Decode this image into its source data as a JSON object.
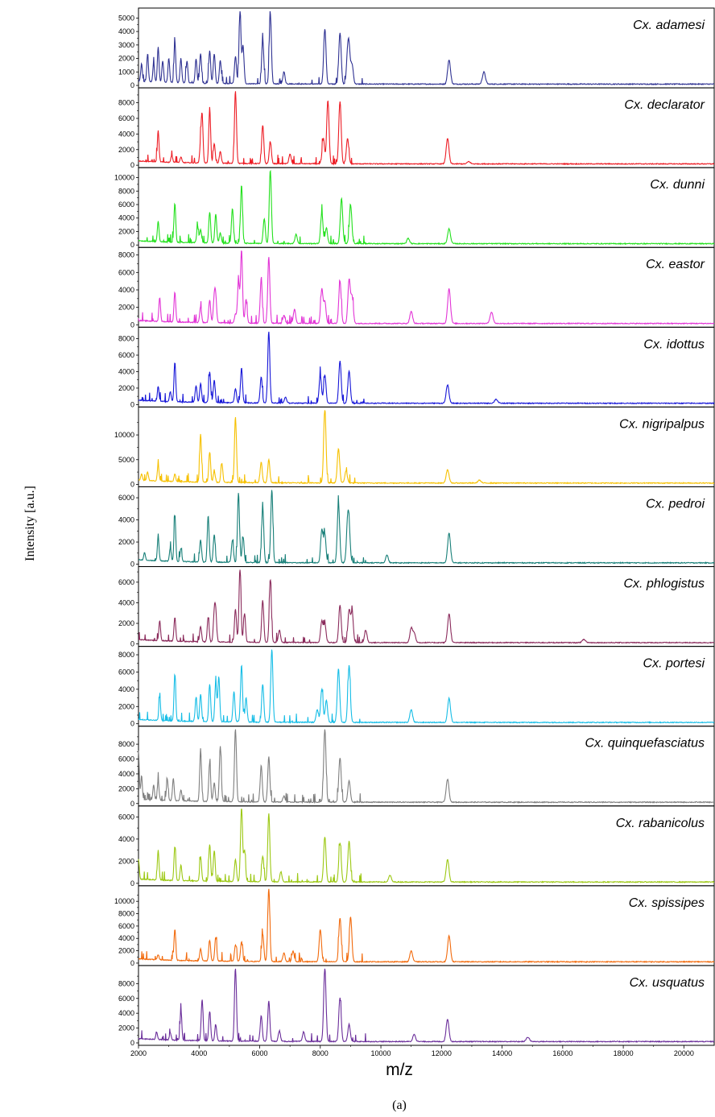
{
  "figure": {
    "ylabel": "Intensity [a.u.]",
    "xlabel": "m/z",
    "caption": "(a)"
  },
  "chart_data": {
    "type": "line",
    "xlabel": "m/z",
    "ylabel": "Intensity [a.u.]",
    "xlim": [
      2000,
      21000
    ],
    "x_ticks": [
      2000,
      4000,
      6000,
      8000,
      10000,
      12000,
      14000,
      16000,
      18000,
      20000
    ],
    "grid": false,
    "panels": [
      {
        "name": "Cx. adamesi",
        "color": "#2e3192",
        "ylim": [
          0,
          5500
        ],
        "y_ticks": [
          0,
          1000,
          2000,
          3000,
          4000,
          5000
        ],
        "peaks": [
          [
            2100,
            1300
          ],
          [
            2300,
            2000
          ],
          [
            2500,
            1400
          ],
          [
            2650,
            2600
          ],
          [
            2800,
            1600
          ],
          [
            3000,
            1800
          ],
          [
            3200,
            3000
          ],
          [
            3400,
            1800
          ],
          [
            3600,
            1600
          ],
          [
            3900,
            1800
          ],
          [
            4050,
            2200
          ],
          [
            4350,
            2400
          ],
          [
            4500,
            2200
          ],
          [
            4700,
            1700
          ],
          [
            5200,
            2000
          ],
          [
            5350,
            5200
          ],
          [
            5450,
            2800
          ],
          [
            6100,
            3300
          ],
          [
            6350,
            5200
          ],
          [
            6800,
            900
          ],
          [
            8150,
            4100
          ],
          [
            8650,
            3800
          ],
          [
            8900,
            1800
          ],
          [
            8950,
            2300
          ],
          [
            9050,
            1400
          ],
          [
            12250,
            1800
          ],
          [
            13400,
            900
          ]
        ]
      },
      {
        "name": "Cx. declarator",
        "color": "#ed1c24",
        "ylim": [
          0,
          9500
        ],
        "y_ticks": [
          0,
          2000,
          4000,
          6000,
          8000
        ],
        "peaks": [
          [
            2650,
            4000
          ],
          [
            3100,
            900
          ],
          [
            3400,
            700
          ],
          [
            4050,
            2200
          ],
          [
            4100,
            5800
          ],
          [
            4350,
            6800
          ],
          [
            4500,
            2500
          ],
          [
            4700,
            1500
          ],
          [
            5200,
            9300
          ],
          [
            6100,
            4900
          ],
          [
            6350,
            2800
          ],
          [
            7000,
            1200
          ],
          [
            8100,
            3300
          ],
          [
            8250,
            8100
          ],
          [
            8650,
            8000
          ],
          [
            8900,
            3200
          ],
          [
            12200,
            3200
          ],
          [
            12900,
            300
          ]
        ]
      },
      {
        "name": "Cx. dunni",
        "color": "#22e01c",
        "ylim": [
          0,
          11000
        ],
        "y_ticks": [
          0,
          2000,
          4000,
          6000,
          8000,
          10000
        ],
        "peaks": [
          [
            2650,
            3000
          ],
          [
            3200,
            5800
          ],
          [
            3950,
            2400
          ],
          [
            4050,
            2000
          ],
          [
            4350,
            4500
          ],
          [
            4550,
            4300
          ],
          [
            4700,
            1500
          ],
          [
            5100,
            5100
          ],
          [
            5400,
            8600
          ],
          [
            6150,
            3700
          ],
          [
            6350,
            10900
          ],
          [
            7200,
            1400
          ],
          [
            8050,
            4600
          ],
          [
            8200,
            2300
          ],
          [
            8700,
            6700
          ],
          [
            9000,
            5800
          ],
          [
            10900,
            800
          ],
          [
            12250,
            2200
          ]
        ]
      },
      {
        "name": "Cx. eastor",
        "color": "#e234d6",
        "ylim": [
          0,
          8500
        ],
        "y_ticks": [
          0,
          2000,
          4000,
          6000,
          8000
        ],
        "peaks": [
          [
            2700,
            2700
          ],
          [
            3200,
            3400
          ],
          [
            4050,
            1800
          ],
          [
            4350,
            2600
          ],
          [
            4500,
            2800
          ],
          [
            4550,
            2700
          ],
          [
            5200,
            1000
          ],
          [
            5300,
            4800
          ],
          [
            5400,
            8400
          ],
          [
            5550,
            2700
          ],
          [
            6050,
            5100
          ],
          [
            6300,
            7600
          ],
          [
            6800,
            900
          ],
          [
            7150,
            1600
          ],
          [
            8050,
            3900
          ],
          [
            8150,
            2500
          ],
          [
            8650,
            4800
          ],
          [
            8950,
            5000
          ],
          [
            9050,
            3000
          ],
          [
            11000,
            1400
          ],
          [
            12250,
            4000
          ],
          [
            13650,
            1300
          ]
        ]
      },
      {
        "name": "Cx. idottus",
        "color": "#1616d8",
        "ylim": [
          0,
          9000
        ],
        "y_ticks": [
          0,
          2000,
          4000,
          6000,
          8000
        ],
        "peaks": [
          [
            2650,
            1800
          ],
          [
            3050,
            1200
          ],
          [
            3200,
            4800
          ],
          [
            3900,
            2000
          ],
          [
            4050,
            2300
          ],
          [
            4350,
            3700
          ],
          [
            4500,
            2700
          ],
          [
            5200,
            1700
          ],
          [
            5400,
            4200
          ],
          [
            6050,
            3200
          ],
          [
            6300,
            8700
          ],
          [
            6850,
            700
          ],
          [
            8000,
            3400
          ],
          [
            8150,
            3400
          ],
          [
            8650,
            5100
          ],
          [
            8950,
            3900
          ],
          [
            12200,
            2200
          ],
          [
            13800,
            500
          ]
        ]
      },
      {
        "name": "Cx. nigripalpus",
        "color": "#f6c000",
        "ylim": [
          0,
          15000
        ],
        "y_ticks": [
          0,
          5000,
          10000
        ],
        "peaks": [
          [
            2100,
            1300
          ],
          [
            2300,
            1800
          ],
          [
            2650,
            3400
          ],
          [
            3200,
            1500
          ],
          [
            4050,
            9700
          ],
          [
            4350,
            6100
          ],
          [
            4500,
            2300
          ],
          [
            4750,
            3900
          ],
          [
            5200,
            13300
          ],
          [
            6050,
            4200
          ],
          [
            6300,
            4700
          ],
          [
            8150,
            15000
          ],
          [
            8600,
            7000
          ],
          [
            8850,
            2500
          ],
          [
            12200,
            2700
          ],
          [
            13250,
            600
          ]
        ]
      },
      {
        "name": "Cx. pedroi",
        "color": "#177f78",
        "ylim": [
          0,
          6700
        ],
        "y_ticks": [
          0,
          2000,
          4000,
          6000
        ],
        "peaks": [
          [
            2200,
            700
          ],
          [
            2650,
            2200
          ],
          [
            3050,
            1200
          ],
          [
            3200,
            4200
          ],
          [
            3400,
            1200
          ],
          [
            4050,
            2000
          ],
          [
            4300,
            4200
          ],
          [
            4500,
            2500
          ],
          [
            5100,
            2000
          ],
          [
            5300,
            6300
          ],
          [
            5450,
            2300
          ],
          [
            6100,
            5000
          ],
          [
            6400,
            6600
          ],
          [
            8050,
            3000
          ],
          [
            8150,
            2500
          ],
          [
            8600,
            5400
          ],
          [
            8900,
            3100
          ],
          [
            8950,
            2700
          ],
          [
            10200,
            700
          ],
          [
            12250,
            2700
          ]
        ]
      },
      {
        "name": "Cx. phlogistus",
        "color": "#8a2a5b",
        "ylim": [
          0,
          7200
        ],
        "y_ticks": [
          0,
          2000,
          4000,
          6000
        ],
        "peaks": [
          [
            2700,
            1900
          ],
          [
            3200,
            2300
          ],
          [
            4050,
            1500
          ],
          [
            4300,
            2400
          ],
          [
            4500,
            2600
          ],
          [
            4550,
            2700
          ],
          [
            5200,
            3200
          ],
          [
            5350,
            7200
          ],
          [
            5500,
            2800
          ],
          [
            6100,
            4100
          ],
          [
            6350,
            6100
          ],
          [
            6650,
            1200
          ],
          [
            8050,
            2100
          ],
          [
            8150,
            1800
          ],
          [
            8650,
            3600
          ],
          [
            8950,
            3100
          ],
          [
            9050,
            2900
          ],
          [
            9500,
            1200
          ],
          [
            11000,
            1400
          ],
          [
            11100,
            900
          ],
          [
            12250,
            2800
          ],
          [
            16700,
            300
          ]
        ]
      },
      {
        "name": "Cx. portesi",
        "color": "#16bde6",
        "ylim": [
          0,
          8600
        ],
        "y_ticks": [
          0,
          2000,
          4000,
          6000,
          8000
        ],
        "peaks": [
          [
            2700,
            2800
          ],
          [
            3200,
            5400
          ],
          [
            3900,
            2800
          ],
          [
            4050,
            3200
          ],
          [
            4350,
            4300
          ],
          [
            4550,
            4600
          ],
          [
            4650,
            5200
          ],
          [
            5150,
            3500
          ],
          [
            5400,
            6600
          ],
          [
            5550,
            2800
          ],
          [
            6100,
            4400
          ],
          [
            6400,
            8500
          ],
          [
            7900,
            1500
          ],
          [
            8050,
            3900
          ],
          [
            8200,
            2600
          ],
          [
            8600,
            6200
          ],
          [
            8950,
            6600
          ],
          [
            11000,
            1500
          ],
          [
            12250,
            2800
          ]
        ]
      },
      {
        "name": "Cx. quinquefasciatus",
        "color": "#7f7f7f",
        "ylim": [
          0,
          10000
        ],
        "y_ticks": [
          0,
          2000,
          4000,
          6000,
          8000
        ],
        "peaks": [
          [
            2000,
            6500
          ],
          [
            2100,
            3200
          ],
          [
            2500,
            2000
          ],
          [
            2650,
            2700
          ],
          [
            2950,
            2900
          ],
          [
            3150,
            3000
          ],
          [
            3400,
            1500
          ],
          [
            4050,
            6900
          ],
          [
            4350,
            5200
          ],
          [
            4500,
            2500
          ],
          [
            4700,
            7500
          ],
          [
            5200,
            9900
          ],
          [
            6050,
            4900
          ],
          [
            6300,
            6100
          ],
          [
            6800,
            800
          ],
          [
            8150,
            9800
          ],
          [
            8650,
            6000
          ],
          [
            8950,
            2900
          ],
          [
            12200,
            3100
          ]
        ]
      },
      {
        "name": "Cx. rabanicolus",
        "color": "#9cc813",
        "ylim": [
          0,
          6700
        ],
        "y_ticks": [
          0,
          2000,
          4000,
          6000
        ],
        "peaks": [
          [
            2000,
            1800
          ],
          [
            2650,
            2700
          ],
          [
            3200,
            3100
          ],
          [
            3400,
            1400
          ],
          [
            4050,
            2200
          ],
          [
            4350,
            3300
          ],
          [
            4500,
            2800
          ],
          [
            5200,
            2000
          ],
          [
            5400,
            6800
          ],
          [
            5500,
            2800
          ],
          [
            6100,
            2300
          ],
          [
            6300,
            6200
          ],
          [
            6700,
            900
          ],
          [
            8150,
            4100
          ],
          [
            8650,
            3500
          ],
          [
            8950,
            3700
          ],
          [
            10300,
            600
          ],
          [
            12200,
            2000
          ]
        ]
      },
      {
        "name": "Cx. spissipes",
        "color": "#f26a0c",
        "ylim": [
          0,
          12000
        ],
        "y_ticks": [
          0,
          2000,
          4000,
          6000,
          8000,
          10000
        ],
        "peaks": [
          [
            2650,
            800
          ],
          [
            3200,
            5000
          ],
          [
            4050,
            2000
          ],
          [
            4350,
            3300
          ],
          [
            4550,
            3900
          ],
          [
            5200,
            2700
          ],
          [
            5400,
            3200
          ],
          [
            6100,
            4500
          ],
          [
            6300,
            11900
          ],
          [
            6800,
            1400
          ],
          [
            7100,
            1700
          ],
          [
            8000,
            5200
          ],
          [
            8650,
            7100
          ],
          [
            9000,
            7300
          ],
          [
            11000,
            1800
          ],
          [
            12250,
            4200
          ]
        ]
      },
      {
        "name": "Cx. usquatus",
        "color": "#6a2d9a",
        "ylim": [
          0,
          10000
        ],
        "y_ticks": [
          0,
          2000,
          4000,
          6000,
          8000
        ],
        "peaks": [
          [
            2600,
            1000
          ],
          [
            3050,
            1000
          ],
          [
            3400,
            4000
          ],
          [
            4100,
            5500
          ],
          [
            4350,
            4000
          ],
          [
            4550,
            2200
          ],
          [
            5200,
            10000
          ],
          [
            6050,
            3400
          ],
          [
            6300,
            5400
          ],
          [
            6650,
            1400
          ],
          [
            7450,
            1300
          ],
          [
            8150,
            9900
          ],
          [
            8650,
            5900
          ],
          [
            8950,
            2300
          ],
          [
            11100,
            1000
          ],
          [
            12200,
            3000
          ],
          [
            14850,
            600
          ]
        ]
      }
    ]
  }
}
